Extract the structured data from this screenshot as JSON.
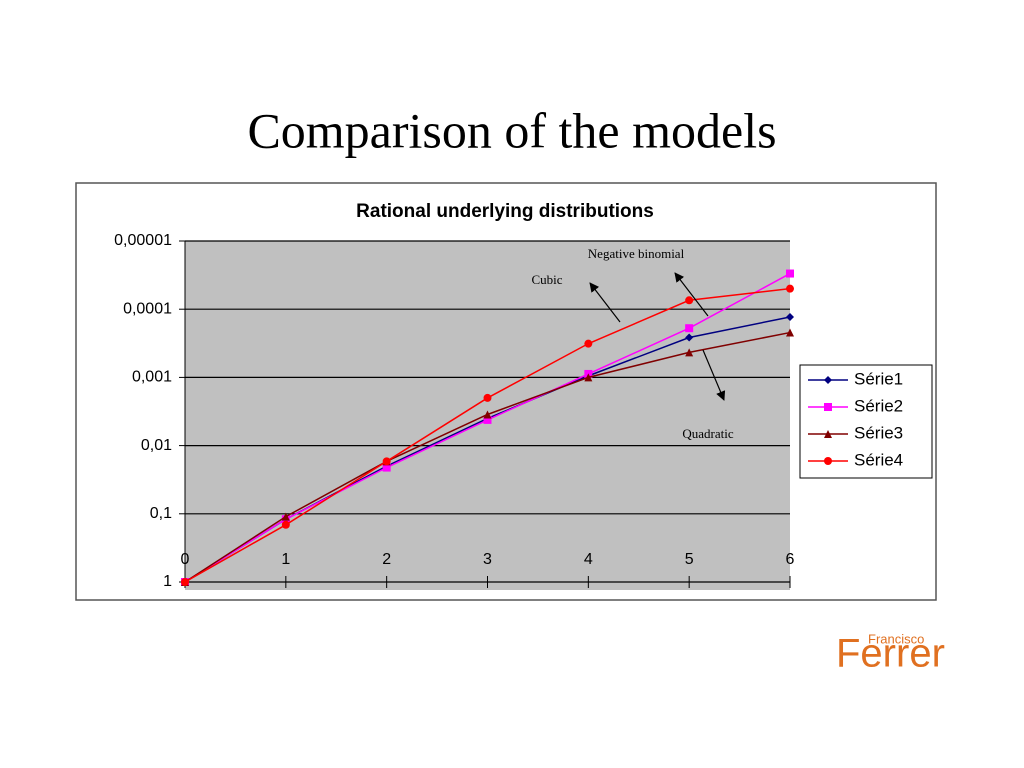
{
  "slide": {
    "title": "Comparison of the models",
    "logo_small": "Francisco",
    "logo": "Ferrer"
  },
  "chart_data": {
    "type": "line",
    "title": "Rational underlying distributions",
    "x": [
      0,
      1,
      2,
      3,
      4,
      5,
      6
    ],
    "xlim": [
      0,
      6
    ],
    "xticks": [
      0,
      1,
      2,
      3,
      4,
      5,
      6
    ],
    "ylim": [
      1,
      1e-05
    ],
    "log_y": true,
    "yticks": [
      {
        "value": 1e-05,
        "label": "0,00001"
      },
      {
        "value": 0.0001,
        "label": "0,0001"
      },
      {
        "value": 0.001,
        "label": "0,001"
      },
      {
        "value": 0.01,
        "label": "0,01"
      },
      {
        "value": 0.1,
        "label": "0,1"
      },
      1
    ],
    "grid": true,
    "legend": "right",
    "series": [
      {
        "name": "Série1",
        "color": "#000080",
        "marker": "diamond",
        "values": [
          1,
          0.12,
          0.02,
          0.004,
          0.00095,
          0.00026,
          0.00013
        ]
      },
      {
        "name": "Série2",
        "color": "#ff00ff",
        "marker": "square",
        "values": [
          1,
          0.12,
          0.021,
          0.0042,
          0.00089,
          0.00019,
          3e-05
        ]
      },
      {
        "name": "Série3",
        "color": "#800000",
        "marker": "triangle",
        "values": [
          1,
          0.11,
          0.017,
          0.0035,
          0.001,
          0.00043,
          0.00022
        ]
      },
      {
        "name": "Série4",
        "color": "#ff0000",
        "marker": "circle",
        "values": [
          1,
          0.145,
          0.017,
          0.002,
          0.00032,
          7.4e-05,
          5e-05
        ]
      }
    ],
    "annotations": [
      "Negative binomial",
      "Cubic",
      "Quadratic"
    ]
  }
}
